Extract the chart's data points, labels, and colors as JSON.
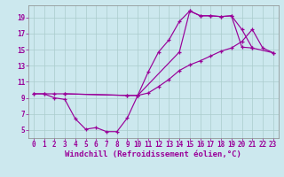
{
  "background_color": "#cce8ee",
  "grid_color": "#aacccc",
  "line_color": "#990099",
  "xlim": [
    -0.5,
    23.5
  ],
  "ylim": [
    4,
    20.5
  ],
  "xticks": [
    0,
    1,
    2,
    3,
    4,
    5,
    6,
    7,
    8,
    9,
    10,
    11,
    12,
    13,
    14,
    15,
    16,
    17,
    18,
    19,
    20,
    21,
    22,
    23
  ],
  "yticks": [
    5,
    7,
    9,
    11,
    13,
    15,
    17,
    19
  ],
  "xlabel": "Windchill (Refroidissement éolien,°C)",
  "line1_x": [
    0,
    1,
    2,
    3,
    4,
    5,
    6,
    7,
    8,
    9,
    10,
    11,
    12,
    13,
    14,
    15,
    16,
    17,
    18,
    19,
    20,
    21
  ],
  "line1_y": [
    9.5,
    9.5,
    9.0,
    8.8,
    6.4,
    5.1,
    5.3,
    4.8,
    4.8,
    6.5,
    9.3,
    12.2,
    14.7,
    16.2,
    18.5,
    19.8,
    19.2,
    19.2,
    19.1,
    19.2,
    15.3,
    15.2
  ],
  "line2_x": [
    0,
    1,
    2,
    3,
    9,
    10,
    11,
    12,
    13,
    14,
    15,
    16,
    17,
    18,
    19,
    20,
    21,
    22,
    23
  ],
  "line2_y": [
    9.5,
    9.5,
    9.5,
    9.5,
    9.3,
    9.3,
    9.6,
    10.4,
    11.3,
    12.4,
    13.1,
    13.6,
    14.2,
    14.8,
    15.2,
    16.0,
    17.5,
    15.2,
    14.6
  ],
  "line3_x": [
    3,
    9,
    10,
    14,
    15,
    16,
    17,
    18,
    19,
    20,
    21,
    23
  ],
  "line3_y": [
    9.5,
    9.3,
    9.3,
    14.7,
    19.8,
    19.2,
    19.2,
    19.1,
    19.2,
    17.5,
    15.2,
    14.6
  ],
  "tick_fontsize": 5.5,
  "xlabel_fontsize": 6.5
}
